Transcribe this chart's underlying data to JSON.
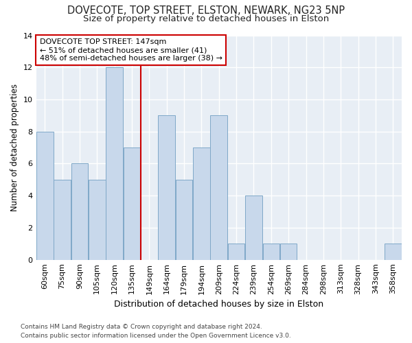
{
  "title1": "DOVECOTE, TOP STREET, ELSTON, NEWARK, NG23 5NP",
  "title2": "Size of property relative to detached houses in Elston",
  "xlabel": "Distribution of detached houses by size in Elston",
  "ylabel": "Number of detached properties",
  "categories": [
    "60sqm",
    "75sqm",
    "90sqm",
    "105sqm",
    "120sqm",
    "135sqm",
    "149sqm",
    "164sqm",
    "179sqm",
    "194sqm",
    "209sqm",
    "224sqm",
    "239sqm",
    "254sqm",
    "269sqm",
    "284sqm",
    "298sqm",
    "313sqm",
    "328sqm",
    "343sqm",
    "358sqm"
  ],
  "values": [
    8,
    5,
    6,
    5,
    12,
    7,
    0,
    9,
    5,
    7,
    9,
    1,
    4,
    1,
    1,
    0,
    0,
    0,
    0,
    0,
    1
  ],
  "bar_color": "#c8d8eb",
  "bar_edge_color": "#7fa8c8",
  "marker_color": "#cc0000",
  "annotation_line1": "DOVECOTE TOP STREET: 147sqm",
  "annotation_line2": "← 51% of detached houses are smaller (41)",
  "annotation_line3": "48% of semi-detached houses are larger (38) →",
  "ylim": [
    0,
    14
  ],
  "yticks": [
    0,
    2,
    4,
    6,
    8,
    10,
    12,
    14
  ],
  "footnote1": "Contains HM Land Registry data © Crown copyright and database right 2024.",
  "footnote2": "Contains public sector information licensed under the Open Government Licence v3.0.",
  "fig_facecolor": "#ffffff",
  "ax_facecolor": "#e8eef5",
  "grid_color": "#ffffff",
  "title1_fontsize": 10.5,
  "title2_fontsize": 9.5,
  "xlabel_fontsize": 9,
  "ylabel_fontsize": 8.5,
  "tick_fontsize": 8,
  "ann_fontsize": 8,
  "footnote_fontsize": 6.5
}
